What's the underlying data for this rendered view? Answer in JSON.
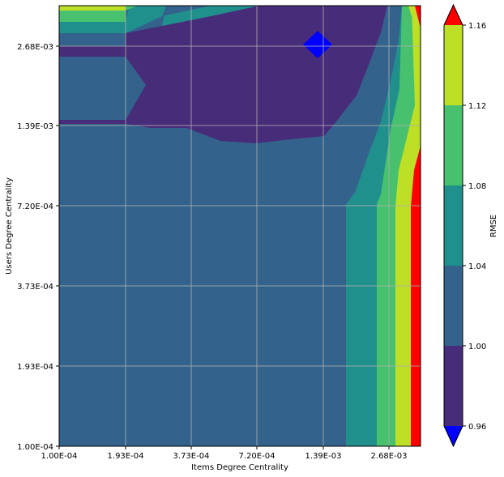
{
  "chart_data": {
    "type": "contour",
    "title": "",
    "xlabel": "Items Degree Centrality",
    "ylabel": "Users Degree Centrality",
    "x_scale": "log",
    "y_scale": "log",
    "xlim": [
      0.0001,
      0.00414
    ],
    "ylim": [
      0.0001,
      0.00414
    ],
    "x_ticks": [
      "1.00E-04",
      "1.93E-04",
      "3.73E-04",
      "7.20E-04",
      "1.39E-03",
      "2.68E-03"
    ],
    "y_ticks": [
      "1.00E-04",
      "1.93E-04",
      "3.73E-04",
      "7.20E-04",
      "1.39E-03",
      "2.68E-03"
    ],
    "grid": true,
    "colorbar": {
      "label": "RMSE",
      "levels": [
        0.96,
        1.0,
        1.04,
        1.08,
        1.12,
        1.16
      ],
      "tick_labels": [
        "0.96",
        "1.00",
        "1.04",
        "1.08",
        "1.12",
        "1.16"
      ],
      "band_colors": [
        "#472c7a",
        "#33638d",
        "#20908d",
        "#48c16e",
        "#bddf26"
      ],
      "under_color": "#0000ff",
      "over_color": "#ff0000",
      "extend": "both"
    },
    "regions": [
      {
        "level": "1.00-1.04",
        "color": "#33638d",
        "description": "background across lower and middle of plot"
      },
      {
        "level": "0.96-1.00",
        "color": "#472c7a",
        "description": "upper region, users degree above ~1.3E-03"
      },
      {
        "level": "<0.96",
        "color": "#0000ff",
        "description": "small diamond near items 1.39E-03, users 2.68E-03"
      },
      {
        "level": "1.04-1.08",
        "color": "#20908d",
        "description": "vertical band items ~1.7E-03 to 2.3E-03 and top-left strip"
      },
      {
        "level": "1.08-1.12",
        "color": "#48c16e",
        "description": "vertical band items ~2.3E-03 to 2.8E-03"
      },
      {
        "level": "1.12-1.16",
        "color": "#bddf26",
        "description": "vertical band items ~2.8E-03 to 3.5E-03"
      },
      {
        "level": ">1.16",
        "color": "#ff0000",
        "description": "right edge, highest items degree"
      }
    ]
  }
}
